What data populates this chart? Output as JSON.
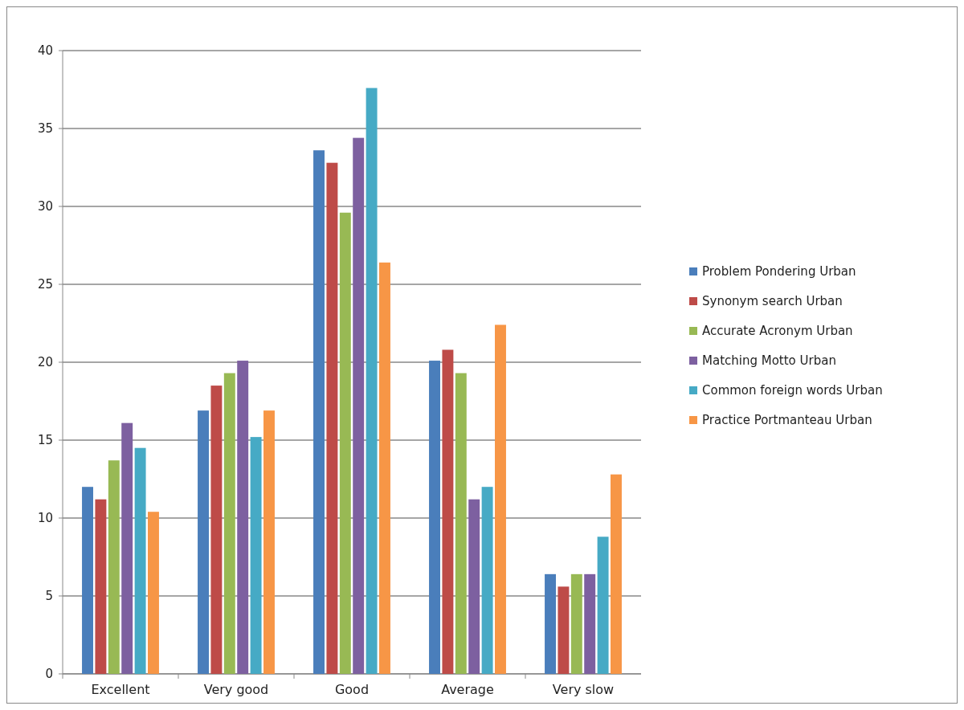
{
  "chart_data": {
    "type": "bar",
    "categories": [
      "Excellent",
      "Very good",
      "Good",
      "Average",
      "Very slow"
    ],
    "series": [
      {
        "name": "Problem Pondering Urban",
        "color": "#4a7ebb",
        "values": [
          12,
          16.9,
          33.6,
          20.1,
          6.4
        ]
      },
      {
        "name": "Synonym search Urban",
        "color": "#be4b48",
        "values": [
          11.2,
          18.5,
          32.8,
          20.8,
          5.6
        ]
      },
      {
        "name": "Accurate Acronym Urban",
        "color": "#98b954",
        "values": [
          13.7,
          19.3,
          29.6,
          19.3,
          6.4
        ]
      },
      {
        "name": "Matching Motto Urban",
        "color": "#7d60a0",
        "values": [
          16.1,
          20.1,
          34.4,
          11.2,
          6.4
        ]
      },
      {
        "name": "Common foreign words Urban",
        "color": "#46aac5",
        "values": [
          14.5,
          15.2,
          37.6,
          12,
          8.8
        ]
      },
      {
        "name": "Practice Portmanteau Urban",
        "color": "#f79646",
        "values": [
          10.4,
          16.9,
          26.4,
          22.4,
          12.8
        ]
      }
    ],
    "ylim": [
      0,
      40
    ],
    "yticks": [
      0,
      5,
      10,
      15,
      20,
      25,
      30,
      35,
      40
    ],
    "grid": "y",
    "legend": "right"
  }
}
